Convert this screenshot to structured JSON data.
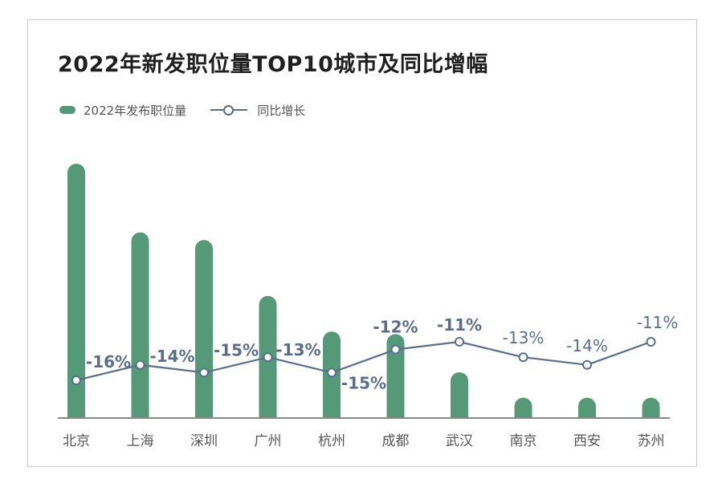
{
  "chart_data": {
    "type": "bar",
    "title": "2022年新发职位量TOP10城市及同比增幅",
    "categories": [
      "北京",
      "上海",
      "深圳",
      "广州",
      "杭州",
      "成都",
      "武汉",
      "南京",
      "西安",
      "苏州"
    ],
    "series": [
      {
        "name": "2022年发布职位量",
        "type": "bar",
        "values": [
          100,
          73,
          70,
          48,
          34,
          33,
          18,
          8,
          8,
          8
        ],
        "color": "#549a78"
      },
      {
        "name": "同比增长",
        "type": "line",
        "values": [
          -16,
          -14,
          -15,
          -13,
          -15,
          -12,
          -11,
          -13,
          -14,
          -11
        ],
        "labels": [
          "-16%",
          "-14%",
          "-15%",
          "-13%",
          "-15%",
          "-12%",
          "-11%",
          "-13%",
          "-14%",
          "-11%"
        ],
        "color": "#5a6e8c"
      }
    ],
    "legend_position": "top-left",
    "grid": false
  }
}
